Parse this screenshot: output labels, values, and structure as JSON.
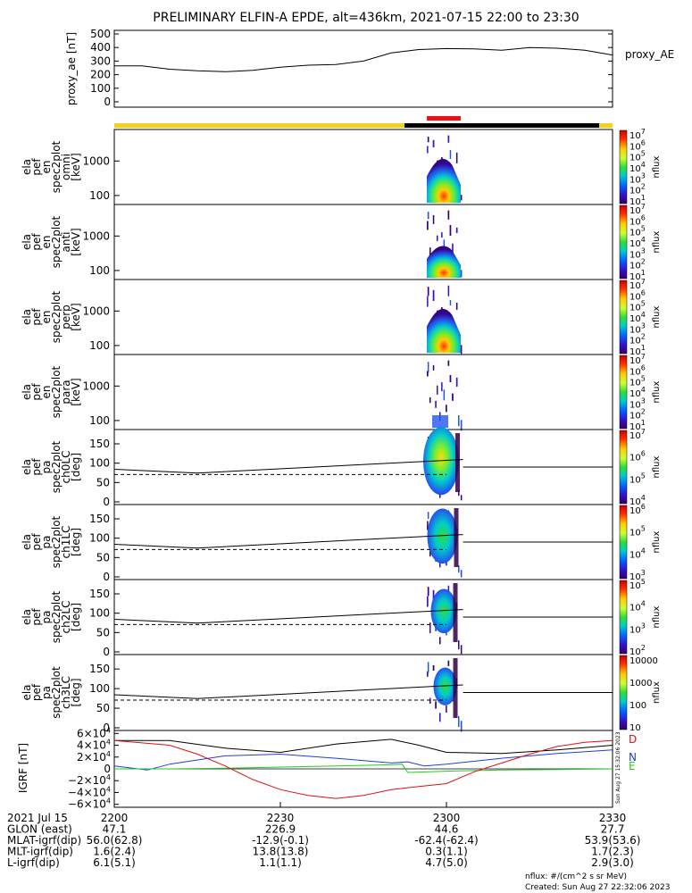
{
  "title": "PRELIMINARY ELFIN-A EPDE, alt=436km, 2021-07-15 22:00 to 23:30",
  "colors": {
    "state_bar_yellow": "#f4d21a",
    "state_bar_black": "#000000",
    "science_marker_red": "#ee1111",
    "bx": "#000000",
    "by": "#1f3fd6",
    "bz": "#22cc22",
    "bd": "#dd1111"
  },
  "chart_data": [
    {
      "type": "line",
      "panel": "proxy_ae",
      "ylabel": "proxy_ae [nT]",
      "yticks": [
        "500",
        "400",
        "300",
        "200",
        "100",
        "0"
      ],
      "ylim": [
        0,
        500
      ],
      "legend": "proxy_AE",
      "x": [
        0,
        5,
        10,
        15,
        20,
        25,
        30,
        35,
        40,
        45,
        50,
        52,
        55,
        60,
        65,
        70,
        75,
        80,
        85,
        90
      ],
      "y": [
        265,
        265,
        240,
        228,
        222,
        232,
        255,
        270,
        275,
        300,
        360,
        370,
        385,
        392,
        390,
        380,
        400,
        395,
        380,
        345
      ]
    },
    {
      "type": "heatmap",
      "panel": "ela_pef_en_spec2plot_omni",
      "ylabel": "ela pef en spec2plot omni [keV]",
      "yticks": [
        "1000",
        "100"
      ],
      "cbar_ticks": [
        "10^7",
        "10^6",
        "10^5",
        "10^4",
        "10^3",
        "10^2",
        "10^1"
      ],
      "cbar_label": "nflux"
    },
    {
      "type": "heatmap",
      "panel": "ela_pef_en_spec2plot_anti",
      "ylabel": "ela pef en spec2plot anti [keV]",
      "yticks": [
        "1000",
        "100"
      ],
      "cbar_ticks": [
        "10^7",
        "10^6",
        "10^5",
        "10^4",
        "10^3",
        "10^2",
        "10^1"
      ],
      "cbar_label": "nflux"
    },
    {
      "type": "heatmap",
      "panel": "ela_pef_en_spec2plot_perp",
      "ylabel": "ela pef en spec2plot perp [keV]",
      "yticks": [
        "1000",
        "100"
      ],
      "cbar_ticks": [
        "10^7",
        "10^6",
        "10^5",
        "10^4",
        "10^3",
        "10^2",
        "10^1"
      ],
      "cbar_label": "nflux"
    },
    {
      "type": "heatmap",
      "panel": "ela_pef_en_spec2plot_para",
      "ylabel": "ela pef en spec2plot para [keV]",
      "yticks": [
        "1000",
        "100"
      ],
      "cbar_ticks": [
        "10^7",
        "10^6",
        "10^5",
        "10^4",
        "10^3",
        "10^2",
        "10^1"
      ],
      "cbar_label": "nflux"
    },
    {
      "type": "heatmap",
      "panel": "ela_pef_pa_spec2plot_ch0LC",
      "ylabel": "ela pef pa spec2plot ch0LC [deg]",
      "yticks": [
        "150",
        "100",
        "50",
        "0"
      ],
      "cbar_ticks": [
        "10^7",
        "10^6",
        "10^5",
        "10^4"
      ],
      "cbar_label": "nflux"
    },
    {
      "type": "heatmap",
      "panel": "ela_pef_pa_spec2plot_ch1LC",
      "ylabel": "ela pef pa spec2plot ch1LC [deg]",
      "yticks": [
        "150",
        "100",
        "50",
        "0"
      ],
      "cbar_ticks": [
        "10^6",
        "10^5",
        "10^4",
        "10^3"
      ],
      "cbar_label": "nflux"
    },
    {
      "type": "heatmap",
      "panel": "ela_pef_pa_spec2plot_ch2LC",
      "ylabel": "ela pef pa spec2plot ch2LC [deg]",
      "yticks": [
        "150",
        "100",
        "50",
        "0"
      ],
      "cbar_ticks": [
        "10^5",
        "10^4",
        "10^3",
        "10^2"
      ],
      "cbar_label": "nflux"
    },
    {
      "type": "heatmap",
      "panel": "ela_pef_pa_spec2plot_ch3LC",
      "ylabel": "ela pef pa spec2plot ch3LC [deg]",
      "yticks": [
        "150",
        "100",
        "50",
        "0"
      ],
      "cbar_ticks": [
        "10000",
        "1000",
        "100",
        "10"
      ],
      "cbar_label": "nflux"
    },
    {
      "type": "line",
      "panel": "IGRF",
      "ylabel": "IGRF [nT]",
      "yticks": [
        "6×10^4",
        "4×10^4",
        "2×10^4",
        "0",
        "−2×10^4",
        "−4×10^4",
        "−6×10^4"
      ],
      "ylim": [
        -60000,
        60000
      ],
      "legend": [
        "D",
        "N",
        "E"
      ],
      "series": [
        {
          "x": [
            0,
            10,
            20,
            30,
            40,
            50,
            55,
            60,
            70,
            80,
            90
          ],
          "y": [
            48000,
            48000,
            35000,
            28000,
            42000,
            50000,
            40000,
            28000,
            26000,
            32000,
            40000
          ]
        },
        {
          "x": [
            0,
            6,
            10,
            20,
            30,
            40,
            50,
            53,
            56,
            60,
            70,
            80,
            90
          ],
          "y": [
            5000,
            -2000,
            8000,
            22000,
            25000,
            18000,
            10000,
            12000,
            5000,
            8000,
            18000,
            26000,
            32000
          ]
        },
        {
          "x": [
            0,
            10,
            20,
            30,
            40,
            50,
            52,
            53,
            60,
            70,
            80,
            90
          ],
          "y": [
            0,
            0,
            1000,
            3000,
            5000,
            7000,
            8000,
            -6000,
            -4000,
            -2000,
            -1000,
            0
          ]
        },
        {
          "x": [
            0,
            10,
            15,
            20,
            25,
            30,
            35,
            40,
            45,
            50,
            55,
            60,
            65,
            70,
            75,
            80,
            85,
            90
          ],
          "y": [
            48000,
            40000,
            25000,
            5000,
            -18000,
            -35000,
            -45000,
            -50000,
            -45000,
            -35000,
            -30000,
            -25000,
            -5000,
            10000,
            25000,
            38000,
            45000,
            48000
          ]
        }
      ]
    }
  ],
  "footer": {
    "rows": [
      {
        "label": "2021 Jul 15",
        "values": [
          "2200",
          "2230",
          "2300",
          "2330"
        ]
      },
      {
        "label": "GLON (east)",
        "values": [
          "47.1",
          "226.9",
          "44.6",
          "27.7"
        ]
      },
      {
        "label": "MLAT-igrf(dip)",
        "values": [
          "56.0(62.8)",
          "-12.9(-0.1)",
          "-62.4(-62.4)",
          "53.9(53.6)"
        ]
      },
      {
        "label": "MLT-igrf(dip)",
        "values": [
          "1.6(2.4)",
          "13.8(13.8)",
          "0.3(1.1)",
          "1.7(2.3)"
        ]
      },
      {
        "label": "L-igrf(dip)",
        "values": [
          "6.1(5.1)",
          "1.1(1.1)",
          "4.7(5.0)",
          "2.9(3.0)"
        ]
      }
    ],
    "units": "nflux: #/(cm^2 s sr MeV)",
    "created": "Created: Sun Aug 27 22:32:06 2023",
    "side_stamp": "Sun Aug 27 15:32:06 2023"
  }
}
